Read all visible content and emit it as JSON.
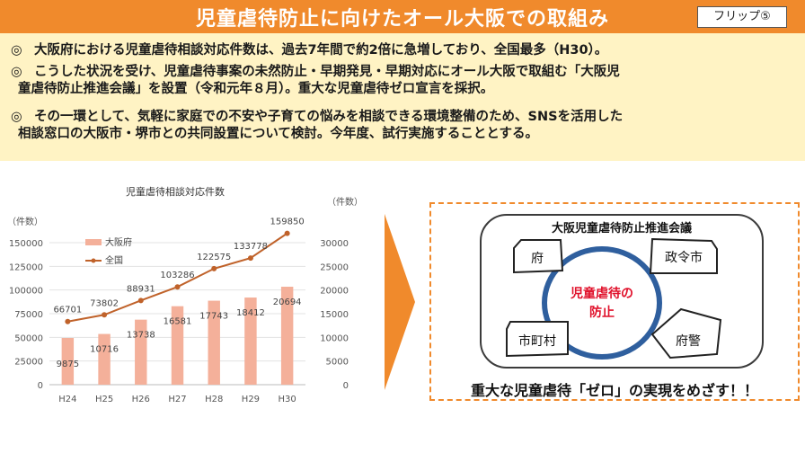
{
  "title": "児童虐待防止に向けたオール大阪での取組み",
  "flip": "フリップ⑤",
  "bullets": [
    {
      "mark": "◎",
      "line1": "大阪府における児童虐待相談対応件数は、過去7年間で約2倍に急増しており、全国最多（H30）。",
      "line2": ""
    },
    {
      "mark": "◎",
      "line1": "こうした状況を受け、児童虐待事案の未然防止・早期発見・早期対応にオール大阪で取組む「大阪児",
      "line2": "童虐待防止推進会議」を設置（令和元年８月）。重大な児童虐待ゼロ宣言を採択。"
    },
    {
      "mark": "◎",
      "line1": "その一環として、気軽に家庭での不安や子育ての悩みを相談できる環境整備のため、SNSを活用した",
      "line2": "相談窓口の大阪市・堺市との共同設置について検討。今年度、試行実施することとする。"
    }
  ],
  "chart_data": {
    "type": "bar+line",
    "title": "児童虐待相談対応件数",
    "left_unit": "（件数）",
    "right_unit": "（件数）",
    "categories": [
      "H24",
      "H25",
      "H26",
      "H27",
      "H28",
      "H29",
      "H30"
    ],
    "series": [
      {
        "name": "大阪府",
        "type": "bar",
        "axis": "right",
        "values": [
          9875,
          10716,
          13738,
          16581,
          17743,
          18412,
          20694
        ],
        "color": "#f4b09a"
      },
      {
        "name": "全国",
        "type": "line",
        "axis": "left",
        "values": [
          66701,
          73802,
          88931,
          103286,
          122575,
          133778,
          159850
        ],
        "color": "#c0622a"
      }
    ],
    "left_axis": {
      "min": 0,
      "max": 150000,
      "ticks": [
        0,
        25000,
        50000,
        75000,
        100000,
        125000,
        150000
      ]
    },
    "right_axis": {
      "min": 0,
      "max": 30000,
      "ticks": [
        0,
        5000,
        10000,
        15000,
        20000,
        25000,
        30000
      ]
    },
    "legend_position": "top-left"
  },
  "diagram": {
    "title": "大阪児童虐待防止推進会議",
    "center": [
      "児童虐待の",
      "防止"
    ],
    "nodes": [
      "府",
      "政令市",
      "府警",
      "市町村"
    ],
    "slogan": "重大な児童虐待「ゼロ」の実現をめざす！！"
  },
  "colors": {
    "accent": "#f08a2c",
    "band": "#fff3c4",
    "bar": "#f4b09a",
    "line": "#c0622a",
    "ring": "#2f5f9e",
    "center_text": "#e0102a"
  }
}
